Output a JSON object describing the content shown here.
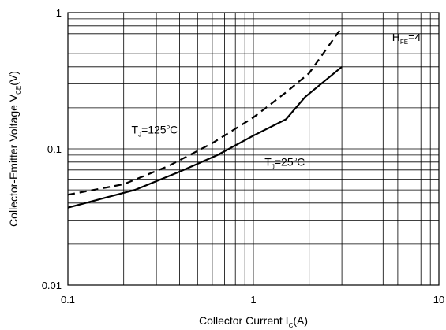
{
  "chart_data": {
    "type": "line",
    "xscale": "log",
    "yscale": "log",
    "xlim": [
      0.1,
      10
    ],
    "ylim": [
      0.01,
      1
    ],
    "grid": true,
    "xlabel": {
      "main": "Collector Current I",
      "sub": "C",
      "tail": "(A)"
    },
    "ylabel": {
      "main": "Collector-Emitter Voltage V",
      "sub": "CE",
      "tail": "(V)"
    },
    "x_ticks": [
      {
        "value": 0.1,
        "label": "0.1"
      },
      {
        "value": 1,
        "label": "1"
      },
      {
        "value": 10,
        "label": "10"
      }
    ],
    "y_ticks": [
      {
        "value": 0.01,
        "label": "0.01"
      },
      {
        "value": 0.1,
        "label": "0.1"
      },
      {
        "value": 1,
        "label": "1"
      }
    ],
    "series": [
      {
        "style": "solid",
        "x": [
          0.1,
          0.23,
          0.4,
          0.64,
          1.0,
          1.5,
          1.9,
          3.0
        ],
        "y": [
          0.037,
          0.05,
          0.068,
          0.09,
          0.125,
          0.165,
          0.24,
          0.4
        ]
      },
      {
        "style": "dashed",
        "x": [
          0.1,
          0.2,
          0.35,
          0.6,
          1.0,
          1.5,
          2.0,
          3.0
        ],
        "y": [
          0.046,
          0.055,
          0.075,
          0.11,
          0.17,
          0.26,
          0.36,
          0.78
        ]
      }
    ],
    "annotations": [
      {
        "name": "tj-125",
        "main": "T",
        "sub": "J",
        "tail": "=125",
        "sup": "o",
        "unit": "C",
        "x": 0.22,
        "y": 0.13
      },
      {
        "name": "tj-25",
        "main": "T",
        "sub": "J",
        "tail": "=25",
        "sup": "o",
        "unit": "C",
        "x": 1.15,
        "y": 0.075
      },
      {
        "name": "hfe",
        "main": "H",
        "sub": "FE",
        "tail": "=4",
        "sup": "",
        "unit": "",
        "x": 5.6,
        "y": 0.62
      }
    ]
  }
}
